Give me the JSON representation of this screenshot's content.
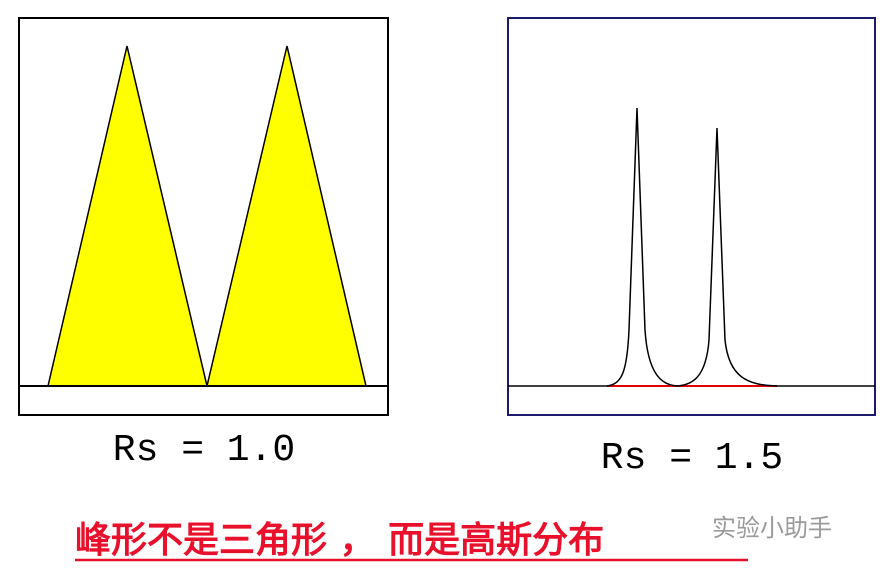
{
  "left_panel": {
    "label": "Rs = 1.0"
  },
  "right_panel": {
    "label": "Rs = 1.5"
  },
  "caption": "峰形不是三角形 ， 而是高斯分布",
  "watermark": "实验小助手"
}
